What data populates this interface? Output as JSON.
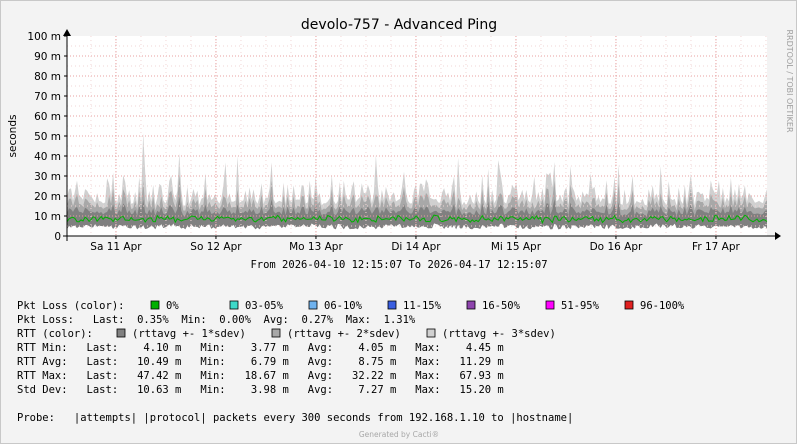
{
  "chart_data": {
    "type": "area",
    "title": "devolo-757 - Advanced Ping",
    "ylabel": "seconds",
    "ylim": [
      0,
      0.1
    ],
    "yticks": [
      {
        "label": "0",
        "value": 0
      },
      {
        "label": "10 m",
        "value": 0.01
      },
      {
        "label": "20 m",
        "value": 0.02
      },
      {
        "label": "30 m",
        "value": 0.03
      },
      {
        "label": "40 m",
        "value": 0.04
      },
      {
        "label": "50 m",
        "value": 0.05
      },
      {
        "label": "60 m",
        "value": 0.06
      },
      {
        "label": "70 m",
        "value": 0.07
      },
      {
        "label": "80 m",
        "value": 0.08
      },
      {
        "label": "90 m",
        "value": 0.09
      },
      {
        "label": "100 m",
        "value": 0.1
      }
    ],
    "xlim": [
      "2026-04-10 12:15",
      "2026-04-17 12:15"
    ],
    "xticks": [
      {
        "label": "Sa 11 Apr",
        "value": "2026-04-11 00:00"
      },
      {
        "label": "So 12 Apr",
        "value": "2026-04-12 00:00"
      },
      {
        "label": "Mo 13 Apr",
        "value": "2026-04-13 00:00"
      },
      {
        "label": "Di 14 Apr",
        "value": "2026-04-14 00:00"
      },
      {
        "label": "Mi 15 Apr",
        "value": "2026-04-15 00:00"
      },
      {
        "label": "Do 16 Apr",
        "value": "2026-04-16 00:00"
      },
      {
        "label": "Fr 17 Apr",
        "value": "2026-04-17 00:00"
      }
    ],
    "grid": true,
    "series_colors": {
      "band1": "#808080",
      "band2": "#a8a8a8",
      "band3": "#d0d0d0",
      "median": "#00b000"
    },
    "rtt_ms": {
      "min": 3.77,
      "avg": 8.75,
      "max": 67.93
    },
    "subtitle": "From 2026-04-10 12:15:07 To 2026-04-17 12:15:07"
  },
  "side_label": "RRDTOOL / TOBI OETIKER",
  "legend": {
    "pkt_loss_title": "Pkt Loss (color):",
    "pkt_loss_colors": [
      {
        "label": "0%",
        "color": "#00b000"
      },
      {
        "label": "03-05%",
        "color": "#3dd9c9"
      },
      {
        "label": "06-10%",
        "color": "#6fb2ee"
      },
      {
        "label": "11-15%",
        "color": "#3a5ee0"
      },
      {
        "label": "16-50%",
        "color": "#8e44ad"
      },
      {
        "label": "51-95%",
        "color": "#ff00ff"
      },
      {
        "label": "96-100%",
        "color": "#e02020"
      }
    ],
    "pkt_loss_line": "Pkt Loss:   Last:  0.35%  Min:  0.00%  Avg:  0.27%  Max:  1.31%",
    "rtt_title": "RTT (color):",
    "rtt_colors": [
      {
        "label": "(rttavg +- 1*sdev)",
        "color": "#808080"
      },
      {
        "label": "(rttavg +- 2*sdev)",
        "color": "#a8a8a8"
      },
      {
        "label": "(rttavg +- 3*sdev)",
        "color": "#d0d0d0"
      }
    ],
    "stats": [
      "RTT Min:   Last:    4.10 m   Min:    3.77 m   Avg:    4.05 m   Max:    4.45 m",
      "RTT Avg:   Last:   10.49 m   Min:    6.79 m   Avg:    8.75 m   Max:   11.29 m",
      "RTT Max:   Last:   47.42 m   Min:   18.67 m   Avg:   32.22 m   Max:   67.93 m",
      "Std Dev:   Last:   10.63 m   Min:    3.98 m   Avg:    7.27 m   Max:   15.20 m"
    ],
    "probe": "Probe:   |attempts| |protocol| packets every 300 seconds from 192.168.1.10 to |hostname|"
  },
  "credit": "Generated by Cacti®"
}
